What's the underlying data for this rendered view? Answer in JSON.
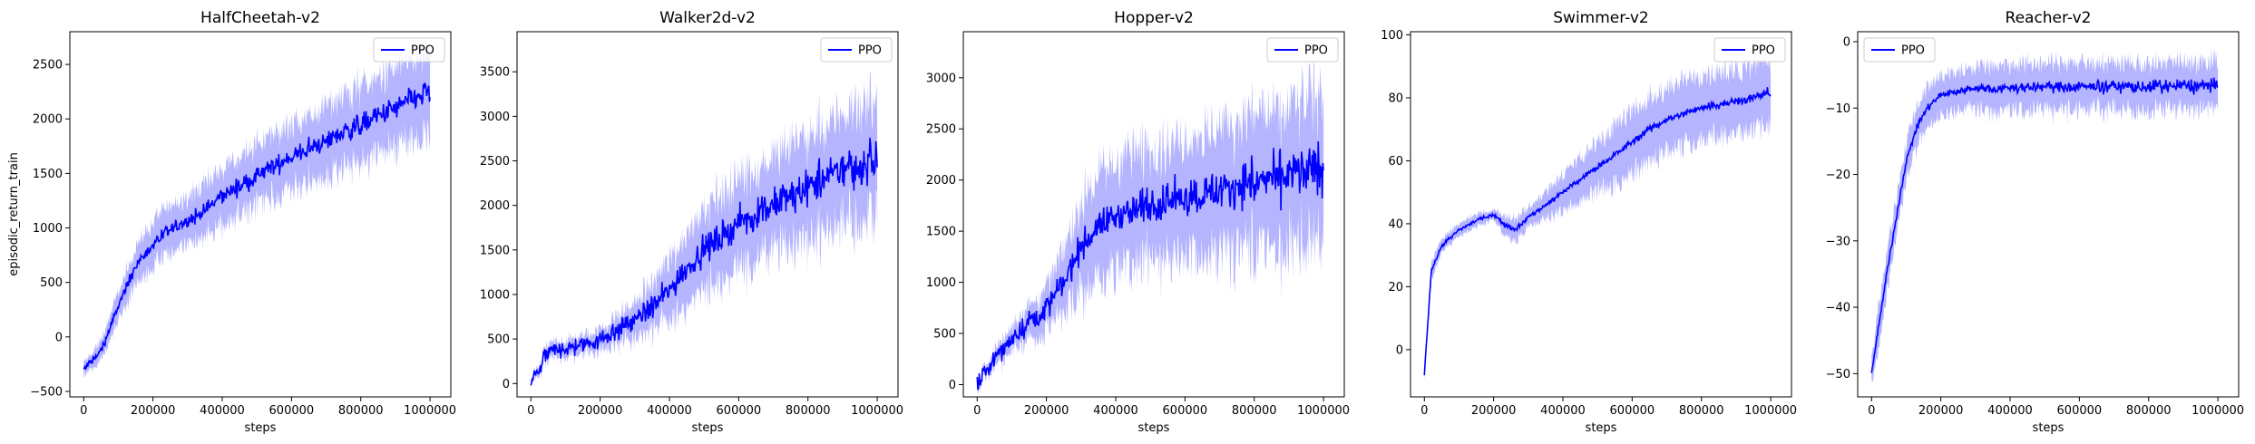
{
  "figure": {
    "ylabel": "episodic_return_train",
    "line_color": "#0000ff",
    "band_color": "#8c8cff"
  },
  "chart_data": [
    {
      "type": "line",
      "title": "HalfCheetah-v2",
      "xlabel": "steps",
      "xlim": [
        -40000,
        1060000
      ],
      "ylim": [
        -550,
        2800
      ],
      "xticks": [
        0,
        200000,
        400000,
        600000,
        800000,
        1000000
      ],
      "yticks": [
        -500,
        0,
        500,
        1000,
        1500,
        2000,
        2500
      ],
      "legend": {
        "entries": [
          "PPO"
        ],
        "loc": "upper right"
      },
      "series": [
        {
          "name": "PPO",
          "x": [
            0,
            50000,
            100000,
            150000,
            200000,
            250000,
            300000,
            350000,
            400000,
            450000,
            500000,
            550000,
            600000,
            650000,
            700000,
            750000,
            800000,
            850000,
            900000,
            950000,
            1000000
          ],
          "y": [
            -300,
            -130,
            280,
            650,
            850,
            980,
            1060,
            1160,
            1300,
            1380,
            1470,
            1570,
            1650,
            1720,
            1800,
            1880,
            1950,
            2020,
            2100,
            2180,
            2250
          ],
          "band": [
            60,
            90,
            130,
            180,
            200,
            220,
            230,
            240,
            260,
            270,
            280,
            290,
            300,
            310,
            320,
            330,
            340,
            350,
            360,
            370,
            380
          ],
          "noise": 150
        }
      ]
    },
    {
      "type": "line",
      "title": "Walker2d-v2",
      "xlabel": "steps",
      "xlim": [
        -40000,
        1060000
      ],
      "ylim": [
        -150,
        3950
      ],
      "xticks": [
        0,
        200000,
        400000,
        600000,
        800000,
        1000000
      ],
      "yticks": [
        0,
        500,
        1000,
        1500,
        2000,
        2500,
        3000,
        3500
      ],
      "legend": {
        "entries": [
          "PPO"
        ],
        "loc": "upper right"
      },
      "series": [
        {
          "name": "PPO",
          "x": [
            0,
            50000,
            100000,
            150000,
            200000,
            250000,
            300000,
            350000,
            400000,
            450000,
            500000,
            550000,
            600000,
            650000,
            700000,
            750000,
            800000,
            850000,
            900000,
            950000,
            1000000
          ],
          "y": [
            0,
            350,
            400,
            430,
            500,
            600,
            720,
            850,
            1050,
            1300,
            1500,
            1650,
            1800,
            1900,
            2000,
            2100,
            2200,
            2300,
            2400,
            2450,
            2500
          ],
          "band": [
            30,
            80,
            90,
            100,
            120,
            150,
            200,
            260,
            330,
            400,
            450,
            480,
            500,
            520,
            540,
            560,
            580,
            600,
            620,
            640,
            650
          ],
          "noise": 300
        }
      ]
    },
    {
      "type": "line",
      "title": "Hopper-v2",
      "xlabel": "steps",
      "xlim": [
        -40000,
        1060000
      ],
      "ylim": [
        -120,
        3450
      ],
      "xticks": [
        0,
        200000,
        400000,
        600000,
        800000,
        1000000
      ],
      "yticks": [
        0,
        500,
        1000,
        1500,
        2000,
        2500,
        3000
      ],
      "legend": {
        "entries": [
          "PPO"
        ],
        "loc": "upper right"
      },
      "series": [
        {
          "name": "PPO",
          "x": [
            0,
            50000,
            100000,
            150000,
            200000,
            250000,
            300000,
            350000,
            400000,
            450000,
            500000,
            550000,
            600000,
            650000,
            700000,
            750000,
            800000,
            850000,
            900000,
            950000,
            1000000
          ],
          "y": [
            0,
            250,
            450,
            620,
            750,
            1000,
            1350,
            1550,
            1650,
            1700,
            1750,
            1800,
            1830,
            1870,
            1900,
            1950,
            1980,
            2000,
            2050,
            2080,
            2100
          ],
          "band": [
            30,
            80,
            120,
            160,
            200,
            300,
            450,
            500,
            520,
            540,
            550,
            560,
            570,
            580,
            600,
            620,
            640,
            660,
            680,
            700,
            720
          ],
          "noise": 320
        }
      ]
    },
    {
      "type": "line",
      "title": "Swimmer-v2",
      "xlabel": "steps",
      "xlim": [
        -40000,
        1060000
      ],
      "ylim": [
        -15,
        101
      ],
      "xticks": [
        0,
        200000,
        400000,
        600000,
        800000,
        1000000
      ],
      "yticks": [
        0,
        20,
        40,
        60,
        80,
        100
      ],
      "legend": {
        "entries": [
          "PPO"
        ],
        "loc": "upper right"
      },
      "series": [
        {
          "name": "PPO",
          "x": [
            0,
            20000,
            50000,
            100000,
            150000,
            200000,
            230000,
            260000,
            300000,
            350000,
            400000,
            450000,
            500000,
            550000,
            600000,
            650000,
            700000,
            750000,
            800000,
            850000,
            900000,
            950000,
            1000000
          ],
          "y": [
            -8,
            25,
            33,
            38,
            41,
            43,
            40,
            38,
            42,
            46,
            50,
            54,
            58,
            62,
            66,
            70,
            73,
            75,
            77,
            78,
            79,
            80,
            82
          ],
          "band": [
            2,
            3,
            2,
            2,
            2,
            1.5,
            3,
            4,
            3,
            4,
            6,
            7,
            8,
            9,
            10,
            10,
            10,
            10,
            10,
            10,
            10,
            10,
            10
          ],
          "noise": 1.8
        }
      ]
    },
    {
      "type": "line",
      "title": "Reacher-v2",
      "xlabel": "steps",
      "xlim": [
        -40000,
        1060000
      ],
      "ylim": [
        -53.5,
        1.5
      ],
      "xticks": [
        0,
        200000,
        400000,
        600000,
        800000,
        1000000
      ],
      "yticks": [
        -50,
        -40,
        -30,
        -20,
        -10,
        0
      ],
      "legend": {
        "entries": [
          "PPO"
        ],
        "loc": "upper left"
      },
      "series": [
        {
          "name": "PPO",
          "x": [
            0,
            20000,
            50000,
            80000,
            100000,
            130000,
            160000,
            200000,
            250000,
            300000,
            400000,
            500000,
            600000,
            700000,
            800000,
            900000,
            1000000
          ],
          "y": [
            -50,
            -43,
            -33,
            -24,
            -18,
            -13,
            -10,
            -8,
            -7.5,
            -7,
            -7,
            -6.8,
            -6.8,
            -6.7,
            -6.8,
            -6.7,
            -6.7
          ],
          "band": [
            2,
            3,
            3,
            3,
            3,
            3,
            3,
            3,
            3,
            3.2,
            3.5,
            3.5,
            3.5,
            3.5,
            3.5,
            3.5,
            3.5
          ],
          "noise": 1.5
        }
      ]
    }
  ]
}
